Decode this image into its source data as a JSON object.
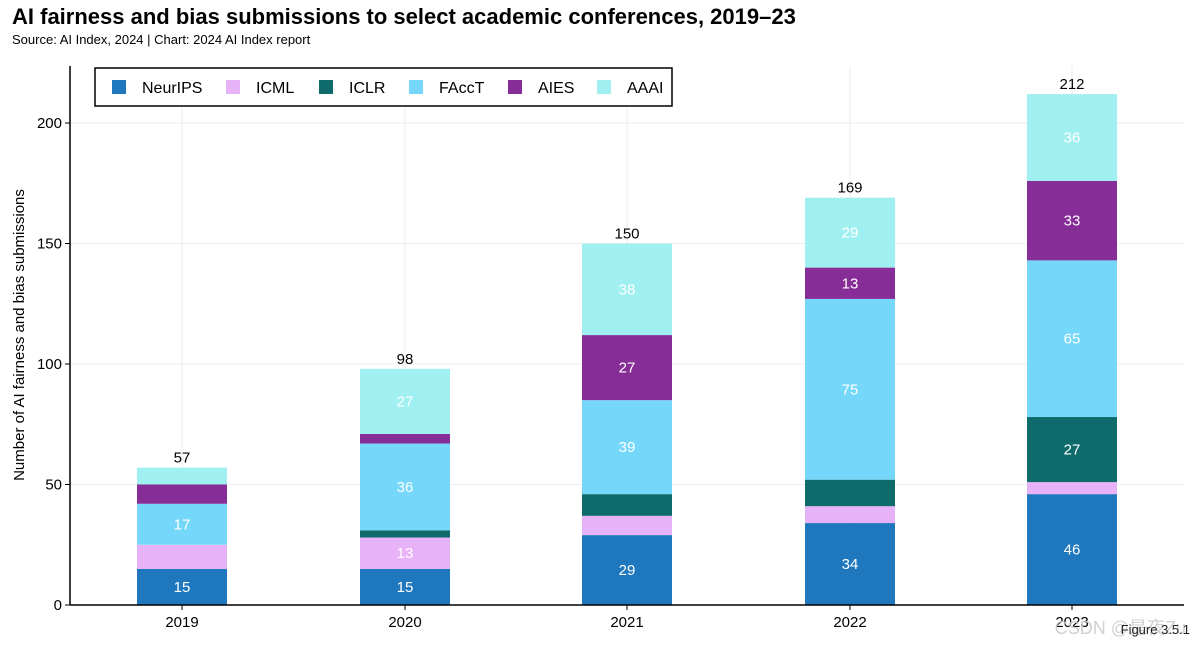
{
  "header": {
    "title": "AI fairness and bias submissions to select academic conferences, 2019–23",
    "subtitle": "Source: AI Index, 2024 | Chart: 2024 AI Index report"
  },
  "footer": {
    "figure_label": "Figure 3.5.1",
    "watermark": "CSDN @是夜Zu"
  },
  "chart_data": {
    "type": "bar",
    "stacked": true,
    "title": "AI fairness and bias submissions to select academic conferences, 2019–23",
    "xlabel": "",
    "ylabel": "Number of AI fairness and bias submissions",
    "ylim": [
      0,
      220
    ],
    "yticks": [
      0,
      50,
      100,
      150,
      200
    ],
    "grid": true,
    "legend_position": "top-left",
    "categories": [
      "2019",
      "2020",
      "2021",
      "2022",
      "2023"
    ],
    "series": [
      {
        "name": "NeurIPS",
        "color": "#1f77bd",
        "values": [
          15,
          15,
          29,
          34,
          46
        ]
      },
      {
        "name": "ICML",
        "color": "#e8b2f8",
        "values": [
          10,
          13,
          8,
          7,
          5
        ]
      },
      {
        "name": "ICLR",
        "color": "#0f6b6b",
        "values": [
          0,
          3,
          9,
          11,
          27
        ]
      },
      {
        "name": "FAccT",
        "color": "#75d8fb",
        "values": [
          17,
          36,
          39,
          75,
          65
        ]
      },
      {
        "name": "AIES",
        "color": "#872d97",
        "values": [
          8,
          4,
          27,
          13,
          33
        ]
      },
      {
        "name": "AAAI",
        "color": "#a0f0f2",
        "values": [
          7,
          27,
          38,
          29,
          36
        ]
      }
    ],
    "data_labels": [
      {
        "category": "2019",
        "series": "NeurIPS",
        "text": "15"
      },
      {
        "category": "2019",
        "series": "FAccT",
        "text": "17"
      },
      {
        "category": "2020",
        "series": "NeurIPS",
        "text": "15"
      },
      {
        "category": "2020",
        "series": "ICML",
        "text": "13"
      },
      {
        "category": "2020",
        "series": "FAccT",
        "text": "36"
      },
      {
        "category": "2020",
        "series": "AAAI",
        "text": "27"
      },
      {
        "category": "2021",
        "series": "NeurIPS",
        "text": "29"
      },
      {
        "category": "2021",
        "series": "FAccT",
        "text": "39"
      },
      {
        "category": "2021",
        "series": "AIES",
        "text": "27"
      },
      {
        "category": "2021",
        "series": "AAAI",
        "text": "38"
      },
      {
        "category": "2022",
        "series": "NeurIPS",
        "text": "34"
      },
      {
        "category": "2022",
        "series": "FAccT",
        "text": "75"
      },
      {
        "category": "2022",
        "series": "AIES",
        "text": "13"
      },
      {
        "category": "2022",
        "series": "AAAI",
        "text": "29"
      },
      {
        "category": "2023",
        "series": "NeurIPS",
        "text": "46"
      },
      {
        "category": "2023",
        "series": "ICLR",
        "text": "27"
      },
      {
        "category": "2023",
        "series": "FAccT",
        "text": "65"
      },
      {
        "category": "2023",
        "series": "AIES",
        "text": "33"
      },
      {
        "category": "2023",
        "series": "AAAI",
        "text": "36"
      }
    ],
    "totals": [
      "57",
      "98",
      "150",
      "169",
      "212"
    ]
  }
}
